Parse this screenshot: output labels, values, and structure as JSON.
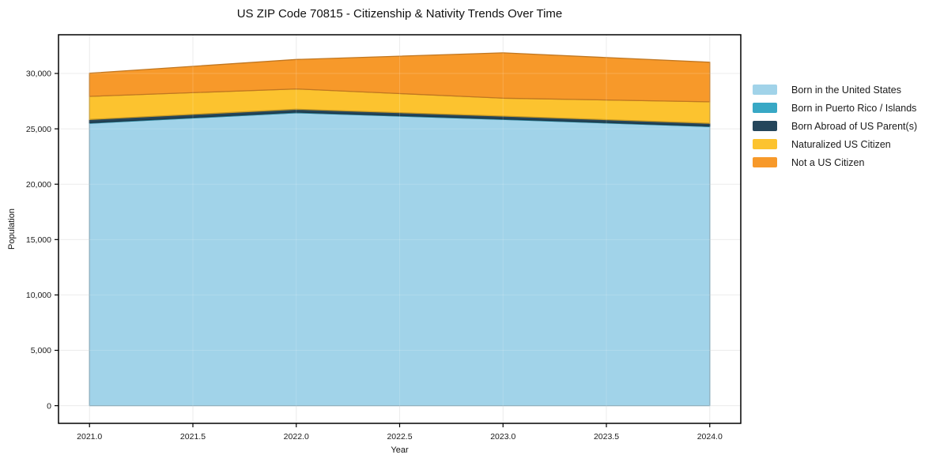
{
  "chart_data": {
    "type": "area",
    "stacked": true,
    "title": "US ZIP Code 70815 - Citizenship & Nativity Trends Over Time",
    "xlabel": "Year",
    "ylabel": "Population",
    "x": [
      2021,
      2022,
      2023,
      2024
    ],
    "series": [
      {
        "name": "Born in the United States",
        "color": "#a1d3e9",
        "values": [
          25500,
          26450,
          25850,
          25200
        ]
      },
      {
        "name": "Born in Puerto Rico / Islands",
        "color": "#38a8c5",
        "values": [
          60,
          60,
          50,
          60
        ]
      },
      {
        "name": "Born Abroad of US Parent(s)",
        "color": "#25465b",
        "values": [
          280,
          260,
          250,
          240
        ]
      },
      {
        "name": "Naturalized US Citizen",
        "color": "#fcc32f",
        "values": [
          2090,
          1830,
          1620,
          1940
        ]
      },
      {
        "name": "Not a US Citizen",
        "color": "#f7992a",
        "values": [
          2090,
          2660,
          4090,
          3570
        ]
      }
    ],
    "totals": [
      30020,
      31260,
      31860,
      31010
    ],
    "xlim": [
      2020.85,
      2024.15
    ],
    "ylim": [
      -1595,
      33495
    ],
    "xticks": {
      "values": [
        2021,
        2021.5,
        2022,
        2022.5,
        2023,
        2023.5,
        2024
      ],
      "labels": [
        "2021.0",
        "2021.5",
        "2022.0",
        "2022.5",
        "2023.0",
        "2023.5",
        "2024.0"
      ]
    },
    "yticks": {
      "values": [
        0,
        5000,
        10000,
        15000,
        20000,
        25000,
        30000
      ],
      "labels": [
        "0",
        "5,000",
        "10,000",
        "15,000",
        "20,000",
        "25,000",
        "30,000"
      ]
    },
    "grid": true,
    "legend_position": "right-outside",
    "colors": {
      "frame": "#000000",
      "grid": "#e8e8e8",
      "text": "#1a1a1a",
      "background": "#ffffff"
    }
  }
}
